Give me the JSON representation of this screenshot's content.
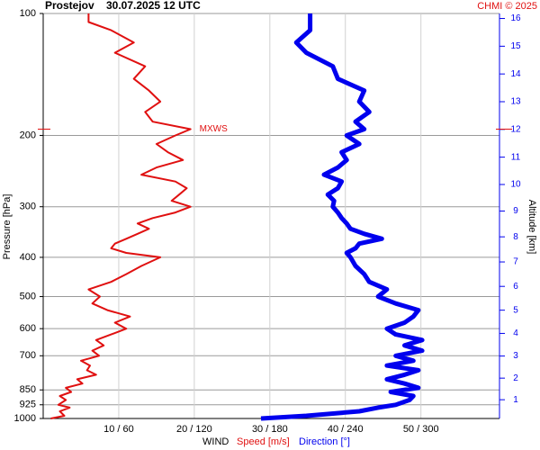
{
  "chart_data": {
    "type": "profile",
    "station": "Prostejov",
    "title": "30.07.2025 12 UTC",
    "credit": "CHMI © 2025",
    "ylabel": "Pressure [hPa]",
    "y2label": "Altitude [km]",
    "xlabel": "WIND",
    "log_y": true,
    "grid": true,
    "y": [
      1000,
      985,
      960,
      940,
      925,
      900,
      880,
      860,
      840,
      820,
      800,
      780,
      760,
      740,
      720,
      700,
      680,
      660,
      640,
      620,
      600,
      580,
      560,
      540,
      520,
      500,
      480,
      460,
      440,
      420,
      400,
      390,
      380,
      370,
      360,
      350,
      340,
      330,
      320,
      310,
      300,
      290,
      280,
      270,
      260,
      250,
      240,
      230,
      220,
      210,
      200,
      193,
      185,
      175,
      165,
      155,
      145,
      135,
      125,
      118,
      110,
      105,
      100
    ],
    "series": [
      {
        "name": "Speed [m/s]",
        "color": "#e01010",
        "values": [
          1.0,
          2.8,
          2.2,
          3.5,
          2.0,
          3.0,
          2.2,
          3.7,
          3.0,
          5.2,
          4.5,
          7.0,
          5.8,
          6.2,
          5.0,
          7.4,
          6.5,
          8.0,
          7.0,
          9.0,
          11.0,
          9.5,
          11.5,
          8.5,
          6.5,
          7.5,
          6.0,
          9.0,
          11.0,
          13.0,
          15.5,
          11.0,
          9.0,
          9.5,
          11.0,
          12.5,
          14.0,
          12.5,
          14.5,
          17.5,
          19.5,
          17.0,
          18.0,
          19.0,
          17.5,
          13.0,
          15.0,
          18.5,
          16.5,
          15.0,
          17.5,
          19.5,
          14.5,
          13.5,
          15.5,
          14.0,
          12.0,
          13.5,
          9.5,
          12.0,
          9.0,
          6.0,
          6.0
        ]
      },
      {
        "name": "Direction [°]",
        "color": "#0000ee",
        "axis": "x2",
        "values": [
          173,
          209,
          251,
          266,
          280,
          291,
          294,
          276,
          298,
          287,
          273,
          287,
          298,
          273,
          294,
          280,
          301,
          287,
          301,
          280,
          273,
          287,
          294,
          298,
          280,
          266,
          273,
          259,
          255,
          248,
          244,
          241,
          248,
          251,
          269,
          255,
          244,
          241,
          237,
          234,
          230,
          231,
          226,
          234,
          237,
          223,
          234,
          241,
          237,
          251,
          241,
          255,
          248,
          259,
          251,
          255,
          234,
          230,
          209,
          201,
          212,
          212,
          212
        ]
      }
    ],
    "ylim": [
      100,
      1000
    ],
    "yticks": [
      100,
      200,
      300,
      400,
      500,
      600,
      700,
      850,
      925,
      1000
    ],
    "xlim": [
      0,
      60.4
    ],
    "x2lim": [
      0,
      362.4
    ],
    "xticks": [
      {
        "value": 10,
        "label": "10 / 60"
      },
      {
        "value": 20,
        "label": "20 / 120"
      },
      {
        "value": 30,
        "label": "30 / 180"
      },
      {
        "value": 40,
        "label": "40 / 240"
      },
      {
        "value": 50,
        "label": "50 / 300"
      }
    ],
    "y2ticks": [
      1,
      2,
      3,
      4,
      5,
      6,
      7,
      8,
      9,
      10,
      11,
      12,
      13,
      14,
      15,
      16
    ],
    "annotations": [
      {
        "text": "MXWS",
        "y": 193
      }
    ]
  }
}
